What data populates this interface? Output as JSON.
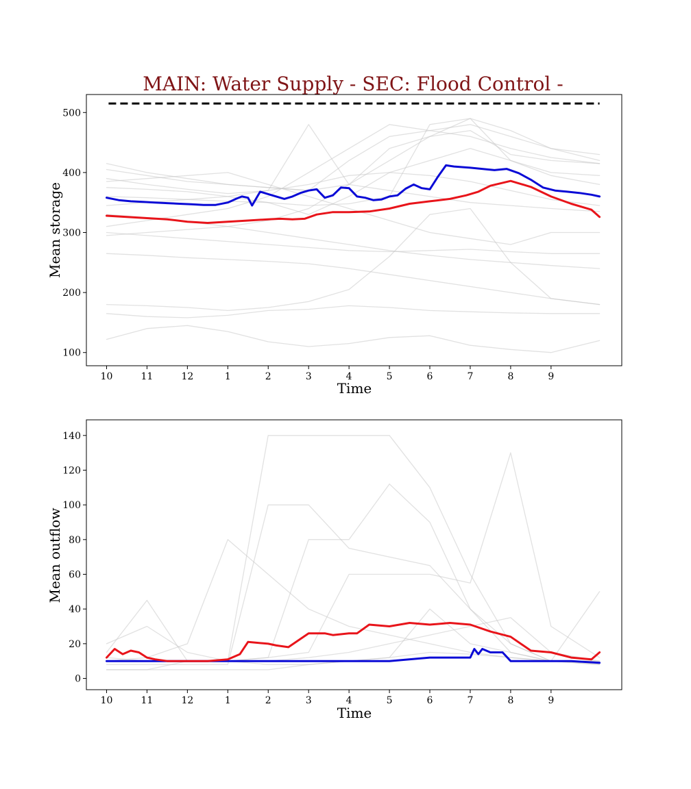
{
  "title": "MAIN: Water Supply - SEC: Flood Control -",
  "colors": {
    "title": "#7f1416",
    "reference": "#000000",
    "blue": "#0a0ad6",
    "red": "#e8141a",
    "ensemble": "#c8c8c8"
  },
  "chart_data": [
    {
      "type": "line",
      "xlabel": "Time",
      "ylabel": "Mean storage",
      "xlim": [
        -0.5,
        12.75
      ],
      "ylim": [
        78,
        530
      ],
      "x_ticks": [
        0,
        1,
        2,
        3,
        4,
        5,
        6,
        7,
        8,
        9,
        10,
        11
      ],
      "x_tick_labels": [
        "10",
        "11",
        "12",
        "1",
        "2",
        "3",
        "4",
        "5",
        "6",
        "7",
        "8",
        "9"
      ],
      "y_ticks": [
        100,
        200,
        300,
        400,
        500
      ],
      "y_tick_labels": [
        "100",
        "200",
        "300",
        "400",
        "500"
      ],
      "grid": false,
      "reference_line": {
        "style": "dashed",
        "x": [
          0.05,
          12.2
        ],
        "y": 515
      },
      "series": [
        {
          "color_key": "blue",
          "x": [
            0,
            0.3,
            0.6,
            0.9,
            1.2,
            1.5,
            1.8,
            2.1,
            2.4,
            2.7,
            3.0,
            3.1,
            3.2,
            3.35,
            3.5,
            3.6,
            3.8,
            4.0,
            4.2,
            4.4,
            4.6,
            4.8,
            5.0,
            5.2,
            5.4,
            5.6,
            5.8,
            6.0,
            6.2,
            6.4,
            6.6,
            6.8,
            7.0,
            7.2,
            7.4,
            7.6,
            7.8,
            8.0,
            8.2,
            8.4,
            8.6,
            8.8,
            9.0,
            9.3,
            9.6,
            9.9,
            10.2,
            10.5,
            10.8,
            11.1,
            11.4,
            11.7,
            12.0,
            12.2
          ],
          "y": [
            358,
            354,
            352,
            351,
            350,
            349,
            348,
            347,
            346,
            346,
            350,
            353,
            356,
            360,
            358,
            345,
            368,
            364,
            360,
            356,
            360,
            366,
            370,
            372,
            358,
            362,
            375,
            374,
            360,
            358,
            354,
            355,
            360,
            362,
            373,
            380,
            374,
            372,
            393,
            412,
            410,
            409,
            408,
            406,
            404,
            406,
            399,
            388,
            375,
            370,
            368,
            366,
            363,
            360
          ]
        },
        {
          "color_key": "red",
          "x": [
            0,
            0.5,
            1.0,
            1.5,
            2.0,
            2.5,
            3.0,
            3.5,
            4.0,
            4.3,
            4.6,
            4.9,
            5.2,
            5.6,
            6.0,
            6.5,
            7.0,
            7.5,
            8.0,
            8.5,
            8.9,
            9.2,
            9.5,
            10.0,
            10.5,
            11.0,
            11.5,
            12.0,
            12.2
          ],
          "y": [
            328,
            326,
            324,
            322,
            318,
            316,
            318,
            320,
            322,
            323,
            322,
            323,
            330,
            334,
            334,
            335,
            340,
            348,
            352,
            356,
            362,
            368,
            378,
            386,
            376,
            360,
            348,
            338,
            326
          ]
        },
        {
          "color_key": "ensemble",
          "x": [
            0,
            1,
            2,
            3,
            4,
            5,
            6,
            7,
            8,
            9,
            10,
            11,
            12.2
          ],
          "y": [
            122,
            140,
            145,
            135,
            118,
            110,
            115,
            125,
            128,
            112,
            105,
            100,
            120
          ]
        },
        {
          "color_key": "ensemble",
          "x": [
            0,
            1,
            2,
            3,
            4,
            5,
            6,
            7,
            8,
            9,
            10,
            11,
            12.2
          ],
          "y": [
            165,
            160,
            158,
            162,
            170,
            172,
            178,
            175,
            170,
            168,
            166,
            165,
            165
          ]
        },
        {
          "color_key": "ensemble",
          "x": [
            0,
            1,
            2,
            3,
            4,
            5,
            6,
            7,
            8,
            9,
            10,
            11,
            12.2
          ],
          "y": [
            180,
            178,
            175,
            170,
            175,
            185,
            205,
            260,
            330,
            340,
            250,
            190,
            180
          ]
        },
        {
          "color_key": "ensemble",
          "x": [
            0,
            1,
            2,
            3,
            4,
            5,
            6,
            7,
            8,
            9,
            10,
            11,
            12.2
          ],
          "y": [
            265,
            262,
            258,
            255,
            252,
            248,
            240,
            230,
            220,
            210,
            200,
            190,
            180
          ]
        },
        {
          "color_key": "ensemble",
          "x": [
            0,
            1,
            2,
            3,
            4,
            5,
            6,
            7,
            8,
            9,
            10,
            11,
            12.2
          ],
          "y": [
            300,
            295,
            290,
            285,
            280,
            275,
            270,
            268,
            270,
            272,
            268,
            265,
            265
          ]
        },
        {
          "color_key": "ensemble",
          "x": [
            0,
            1,
            2,
            3,
            4,
            5,
            6,
            7,
            8,
            9,
            10,
            11,
            12.2
          ],
          "y": [
            330,
            325,
            318,
            310,
            300,
            290,
            280,
            270,
            262,
            255,
            250,
            245,
            240
          ]
        },
        {
          "color_key": "ensemble",
          "x": [
            0,
            1,
            2,
            3,
            4,
            5,
            6,
            7,
            8,
            9,
            10,
            11,
            12.2
          ],
          "y": [
            295,
            300,
            305,
            310,
            320,
            340,
            380,
            420,
            460,
            490,
            470,
            440,
            420
          ]
        },
        {
          "color_key": "ensemble",
          "x": [
            0,
            1,
            2,
            3,
            4,
            5,
            6,
            7,
            8,
            9,
            10,
            11,
            12.2
          ],
          "y": [
            415,
            400,
            390,
            380,
            375,
            370,
            380,
            440,
            460,
            470,
            430,
            420,
            415
          ]
        },
        {
          "color_key": "ensemble",
          "x": [
            0,
            1,
            2,
            3,
            4,
            5,
            6,
            7,
            8,
            9,
            10,
            11,
            12.2
          ],
          "y": [
            390,
            380,
            372,
            365,
            370,
            380,
            395,
            400,
            395,
            385,
            370,
            355,
            345
          ]
        },
        {
          "color_key": "ensemble",
          "x": [
            0,
            1,
            2,
            3,
            4,
            5,
            6,
            7,
            8,
            9,
            10,
            11,
            12.2
          ],
          "y": [
            375,
            372,
            368,
            360,
            350,
            330,
            360,
            400,
            420,
            440,
            420,
            395,
            380
          ]
        },
        {
          "color_key": "ensemble",
          "x": [
            0,
            1,
            2,
            3,
            4,
            5,
            6,
            7,
            8,
            9,
            10,
            11,
            12.2
          ],
          "y": [
            360,
            358,
            355,
            352,
            350,
            345,
            348,
            360,
            480,
            490,
            420,
            400,
            395
          ]
        },
        {
          "color_key": "ensemble",
          "x": [
            0,
            1,
            2,
            3,
            4,
            5,
            6,
            7,
            8,
            9,
            10,
            11,
            12.2
          ],
          "y": [
            345,
            350,
            355,
            360,
            370,
            480,
            380,
            370,
            360,
            350,
            345,
            340,
            335
          ]
        },
        {
          "color_key": "ensemble",
          "x": [
            0,
            1,
            2,
            3,
            4,
            5,
            6,
            7,
            8,
            9,
            10,
            11,
            12.2
          ],
          "y": [
            310,
            320,
            330,
            340,
            360,
            400,
            440,
            480,
            470,
            460,
            440,
            425,
            415
          ]
        },
        {
          "color_key": "ensemble",
          "x": [
            0,
            1,
            2,
            3,
            4,
            5,
            6,
            7,
            8,
            9,
            10,
            11,
            12.2
          ],
          "y": [
            385,
            390,
            395,
            400,
            380,
            360,
            340,
            320,
            300,
            290,
            280,
            300,
            300
          ]
        },
        {
          "color_key": "ensemble",
          "x": [
            0,
            1,
            2,
            3,
            4,
            5,
            6,
            7,
            8,
            9,
            10,
            11,
            12.2
          ],
          "y": [
            405,
            395,
            385,
            380,
            375,
            370,
            420,
            460,
            470,
            480,
            460,
            440,
            430
          ]
        }
      ]
    },
    {
      "type": "line",
      "xlabel": "Time",
      "ylabel": "Mean outflow",
      "xlim": [
        -0.5,
        12.75
      ],
      "ylim": [
        -6.5,
        149
      ],
      "x_ticks": [
        0,
        1,
        2,
        3,
        4,
        5,
        6,
        7,
        8,
        9,
        10,
        11
      ],
      "x_tick_labels": [
        "10",
        "11",
        "12",
        "1",
        "2",
        "3",
        "4",
        "5",
        "6",
        "7",
        "8",
        "9"
      ],
      "y_ticks": [
        0,
        20,
        40,
        60,
        80,
        100,
        120,
        140
      ],
      "y_tick_labels": [
        "0",
        "20",
        "40",
        "60",
        "80",
        "100",
        "120",
        "140"
      ],
      "grid": false,
      "series": [
        {
          "color_key": "blue",
          "x": [
            0,
            1,
            2,
            3,
            4,
            5,
            6,
            7,
            8,
            9,
            9.1,
            9.2,
            9.3,
            9.5,
            9.8,
            10.0,
            10.5,
            11,
            11.5,
            12.2
          ],
          "y": [
            10,
            10,
            10,
            10,
            10,
            10,
            10,
            10,
            12,
            12,
            17,
            14,
            17,
            15,
            15,
            10,
            10,
            10,
            10,
            9
          ]
        },
        {
          "color_key": "red",
          "x": [
            0,
            0.2,
            0.4,
            0.6,
            0.8,
            1.0,
            1.2,
            1.5,
            2.0,
            2.5,
            3.0,
            3.3,
            3.5,
            4.0,
            4.2,
            4.5,
            5.0,
            5.4,
            5.6,
            6.0,
            6.2,
            6.5,
            7.0,
            7.5,
            8.0,
            8.5,
            9.0,
            9.5,
            10.0,
            10.5,
            11.0,
            11.5,
            12.0,
            12.2
          ],
          "y": [
            12,
            17,
            14,
            16,
            15,
            12,
            11,
            10,
            10,
            10,
            11,
            14,
            21,
            20,
            19,
            18,
            26,
            26,
            25,
            26,
            26,
            31,
            30,
            32,
            31,
            32,
            31,
            27,
            24,
            16,
            15,
            12,
            11,
            15
          ]
        },
        {
          "color_key": "ensemble",
          "x": [
            0,
            1,
            2,
            3,
            4,
            5,
            6,
            7,
            8,
            9,
            10,
            11,
            12.2
          ],
          "y": [
            20,
            30,
            15,
            10,
            8,
            8,
            10,
            12,
            15,
            14,
            12,
            10,
            10
          ]
        },
        {
          "color_key": "ensemble",
          "x": [
            0,
            1,
            2,
            3,
            4,
            5,
            6,
            7,
            8,
            9,
            10,
            11,
            12.2
          ],
          "y": [
            10,
            12,
            20,
            80,
            60,
            40,
            30,
            25,
            20,
            15,
            12,
            10,
            8
          ]
        },
        {
          "color_key": "ensemble",
          "x": [
            0,
            1,
            2,
            3,
            4,
            5,
            6,
            7,
            8,
            9,
            10,
            11,
            12.2
          ],
          "y": [
            5,
            5,
            10,
            10,
            140,
            140,
            140,
            140,
            110,
            60,
            20,
            10,
            8
          ]
        },
        {
          "color_key": "ensemble",
          "x": [
            0,
            1,
            2,
            3,
            4,
            5,
            6,
            7,
            8,
            9,
            10,
            11,
            12.2
          ],
          "y": [
            8,
            8,
            8,
            8,
            100,
            100,
            75,
            70,
            65,
            40,
            20,
            10,
            9
          ]
        },
        {
          "color_key": "ensemble",
          "x": [
            0,
            1,
            2,
            3,
            4,
            5,
            6,
            7,
            8,
            9,
            10,
            11,
            12.2
          ],
          "y": [
            12,
            10,
            10,
            10,
            12,
            80,
            80,
            112,
            90,
            40,
            15,
            10,
            10
          ]
        },
        {
          "color_key": "ensemble",
          "x": [
            0,
            1,
            2,
            3,
            4,
            5,
            6,
            7,
            8,
            9,
            10,
            11,
            12.2
          ],
          "y": [
            10,
            10,
            10,
            10,
            12,
            15,
            60,
            60,
            60,
            55,
            130,
            30,
            12
          ]
        },
        {
          "color_key": "ensemble",
          "x": [
            0,
            1,
            2,
            3,
            4,
            5,
            6,
            7,
            8,
            9,
            10,
            11,
            12.2
          ],
          "y": [
            15,
            45,
            10,
            10,
            10,
            12,
            15,
            20,
            25,
            30,
            35,
            15,
            10
          ]
        },
        {
          "color_key": "ensemble",
          "x": [
            0,
            1,
            2,
            3,
            4,
            5,
            6,
            7,
            8,
            9,
            10,
            11,
            12.2
          ],
          "y": [
            5,
            5,
            5,
            5,
            5,
            8,
            10,
            12,
            40,
            20,
            15,
            10,
            50
          ]
        }
      ]
    }
  ]
}
